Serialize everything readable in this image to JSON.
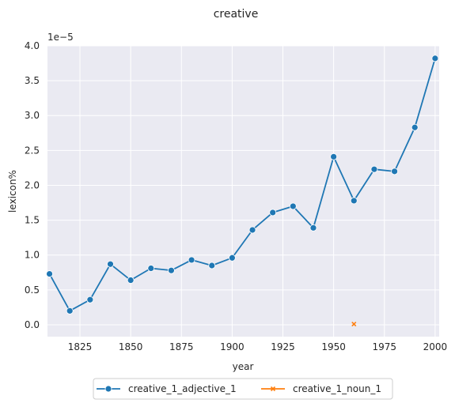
{
  "chart_data": {
    "type": "line",
    "title": "creative",
    "xlabel": "year",
    "ylabel": "lexicon%",
    "y_offset_label": "1e−5",
    "xlim": [
      1809,
      2002
    ],
    "ylim": [
      -0.17,
      4.0
    ],
    "x_ticks": [
      1825,
      1850,
      1875,
      1900,
      1925,
      1950,
      1975,
      2000
    ],
    "y_ticks": [
      "0.0",
      "0.5",
      "1.0",
      "1.5",
      "2.0",
      "2.5",
      "3.0",
      "3.5",
      "4.0"
    ],
    "grid": true,
    "legend_position": "bottom-center",
    "series": [
      {
        "name": "creative_1_adjective_1",
        "color": "#1f77b4",
        "marker": "circle",
        "x": [
          1810,
          1820,
          1830,
          1840,
          1850,
          1860,
          1870,
          1880,
          1890,
          1900,
          1910,
          1920,
          1930,
          1940,
          1950,
          1960,
          1970,
          1980,
          1990,
          2000
        ],
        "y": [
          0.73,
          0.2,
          0.36,
          0.87,
          0.64,
          0.81,
          0.78,
          0.93,
          0.85,
          0.96,
          1.36,
          1.61,
          1.7,
          1.39,
          2.41,
          1.78,
          2.23,
          2.2,
          2.83,
          3.82
        ]
      },
      {
        "name": "creative_1_noun_1",
        "color": "#ff7f0e",
        "marker": "x",
        "x": [
          1960
        ],
        "y": [
          0.01
        ]
      }
    ]
  }
}
